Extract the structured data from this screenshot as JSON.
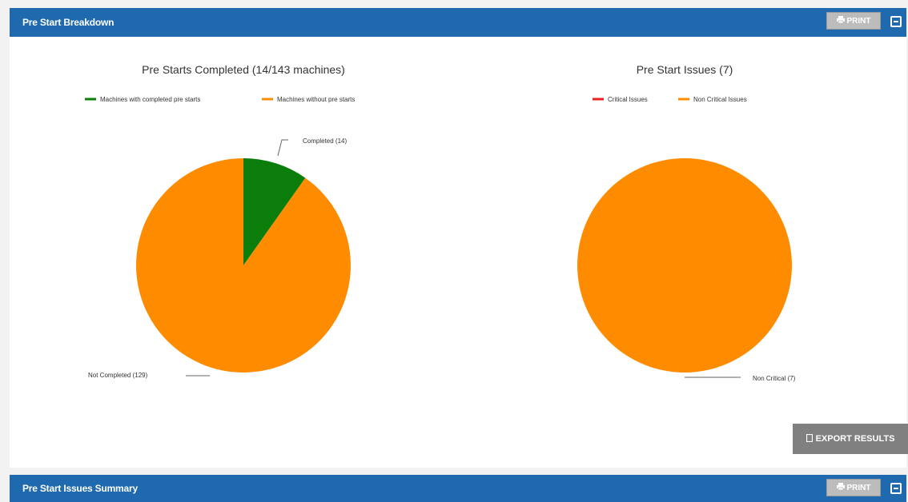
{
  "top_panel": {
    "title": "Pre Start Breakdown",
    "print_label": "PRINT"
  },
  "bottom_panel": {
    "title": "Pre Start Issues Summary",
    "print_label": "PRINT"
  },
  "export_label": "EXPORT RESULTS",
  "colors": {
    "header": "#1f6aae",
    "green": "#0a7d0a",
    "orange": "#ff8c00",
    "red": "#e82020"
  },
  "chart_data": [
    {
      "type": "pie",
      "title": "Pre Starts Completed (14/143 machines)",
      "legend": [
        "Machines with completed pre starts",
        "Machines without pre starts"
      ],
      "legend_placement": "top",
      "slices": [
        {
          "label": "Completed (14)",
          "value": 14,
          "color": "#0a7d0a"
        },
        {
          "label": "Not Completed (129)",
          "value": 129,
          "color": "#ff8c00"
        }
      ]
    },
    {
      "type": "pie",
      "title": "Pre Start Issues (7)",
      "legend": [
        "Critical Issues",
        "Non Critical Issues"
      ],
      "legend_placement": "top",
      "slices": [
        {
          "label": "Critical",
          "value": 0,
          "color": "#e82020"
        },
        {
          "label": "Non Critical (7)",
          "value": 7,
          "color": "#ff8c00"
        }
      ]
    }
  ]
}
